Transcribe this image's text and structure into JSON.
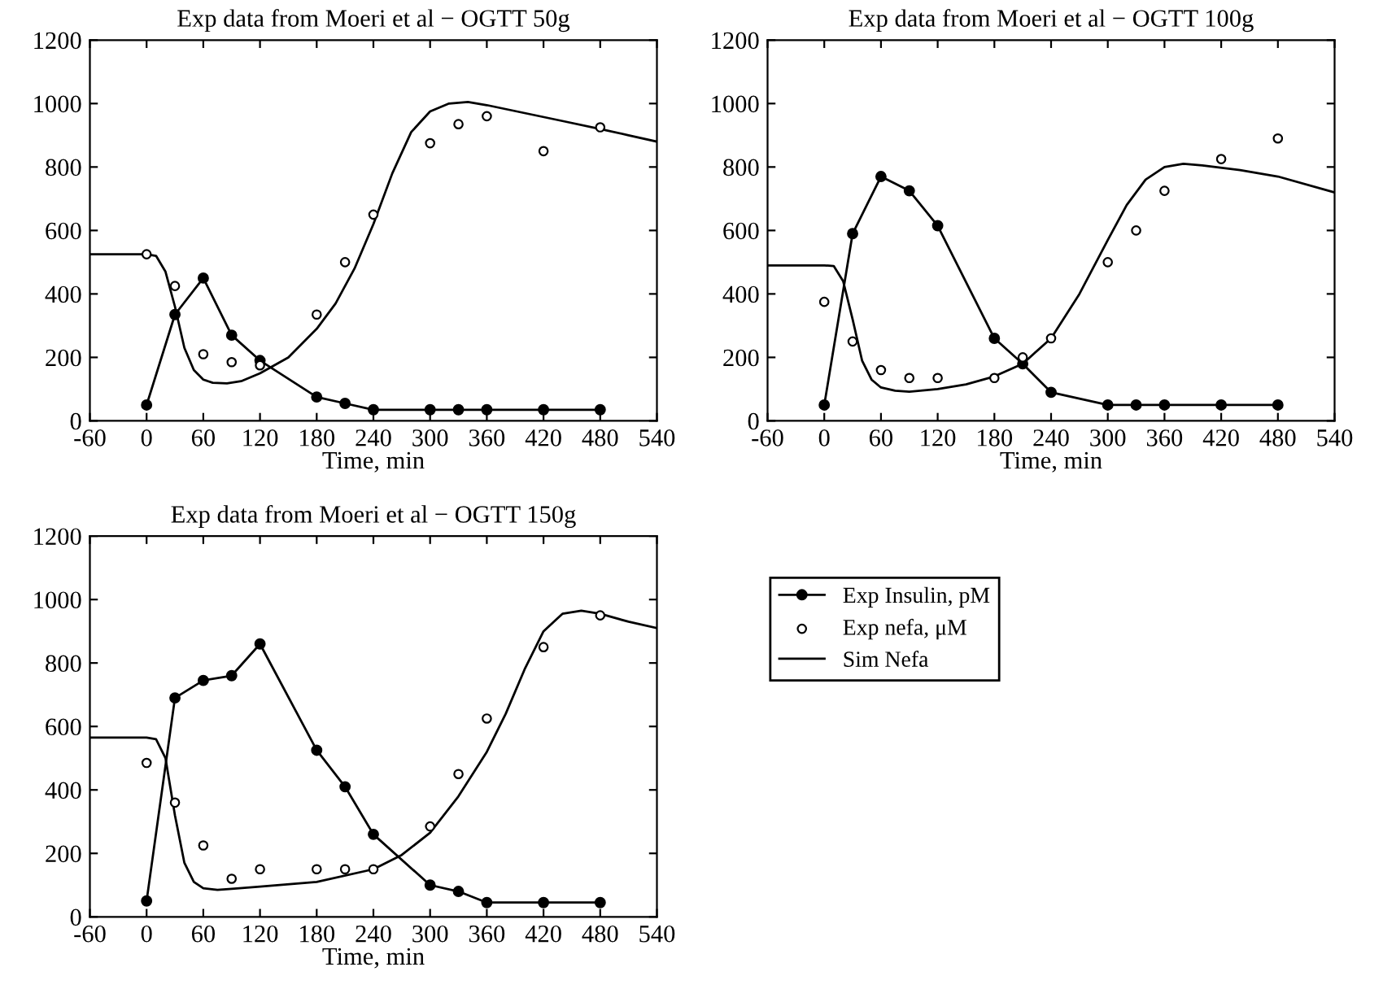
{
  "chart_data": [
    {
      "type": "line",
      "title": "Exp data from Moeri et al − OGTT 50g",
      "xlabel": "Time, min",
      "xlim": [
        -60,
        540
      ],
      "xticks": [
        -60,
        0,
        60,
        120,
        180,
        240,
        300,
        360,
        420,
        480,
        540
      ],
      "ylim": [
        0,
        1200
      ],
      "yticks": [
        0,
        200,
        400,
        600,
        800,
        1000,
        1200
      ],
      "grid": false,
      "legend": false,
      "series": [
        {
          "color": "#000000",
          "marker": "circle",
          "line_style": "solid",
          "x": [
            0,
            30,
            60,
            90,
            120,
            180,
            210,
            240,
            300,
            330,
            360,
            420,
            480
          ],
          "values": [
            50,
            335,
            450,
            270,
            190,
            75,
            55,
            35,
            35,
            35,
            35,
            35,
            35
          ]
        },
        {
          "type": "scatter",
          "color": "#000000",
          "marker": "circle",
          "x": [
            0,
            30,
            60,
            90,
            120,
            180,
            210,
            240,
            300,
            330,
            360,
            420,
            480
          ],
          "values": [
            525,
            425,
            210,
            185,
            175,
            335,
            500,
            650,
            875,
            935,
            960,
            850,
            925
          ]
        },
        {
          "color": "#000000",
          "marker": "none",
          "line_style": "solid",
          "x": [
            -60,
            0,
            10,
            20,
            30,
            40,
            50,
            60,
            70,
            85,
            100,
            120,
            150,
            180,
            200,
            220,
            240,
            260,
            280,
            300,
            320,
            340,
            360,
            400,
            440,
            480,
            510,
            540
          ],
          "values": [
            525,
            525,
            520,
            470,
            360,
            230,
            160,
            130,
            120,
            118,
            125,
            150,
            200,
            290,
            370,
            480,
            620,
            780,
            910,
            975,
            1000,
            1005,
            995,
            970,
            945,
            920,
            900,
            880
          ]
        }
      ]
    },
    {
      "type": "line",
      "title": "Exp data from Moeri et al − OGTT 100g",
      "xlabel": "Time, min",
      "xlim": [
        -60,
        540
      ],
      "xticks": [
        -60,
        0,
        60,
        120,
        180,
        240,
        300,
        360,
        420,
        480,
        540
      ],
      "ylim": [
        0,
        1200
      ],
      "yticks": [
        0,
        200,
        400,
        600,
        800,
        1000,
        1200
      ],
      "grid": false,
      "legend": false,
      "series": [
        {
          "color": "#000000",
          "marker": "circle",
          "line_style": "solid",
          "x": [
            0,
            30,
            60,
            90,
            120,
            180,
            210,
            240,
            300,
            330,
            360,
            420,
            480
          ],
          "values": [
            50,
            590,
            770,
            725,
            615,
            260,
            180,
            90,
            50,
            50,
            50,
            50,
            50
          ]
        },
        {
          "type": "scatter",
          "color": "#000000",
          "marker": "circle",
          "x": [
            0,
            30,
            60,
            90,
            120,
            180,
            210,
            240,
            300,
            330,
            360,
            420,
            480
          ],
          "values": [
            375,
            250,
            160,
            135,
            135,
            135,
            200,
            260,
            500,
            600,
            725,
            825,
            890
          ]
        },
        {
          "color": "#000000",
          "marker": "none",
          "line_style": "solid",
          "x": [
            -60,
            0,
            10,
            20,
            30,
            40,
            50,
            60,
            75,
            90,
            120,
            150,
            180,
            210,
            240,
            270,
            300,
            320,
            340,
            360,
            380,
            400,
            440,
            480,
            540
          ],
          "values": [
            490,
            490,
            488,
            440,
            320,
            190,
            130,
            105,
            95,
            92,
            100,
            115,
            140,
            180,
            260,
            400,
            570,
            680,
            760,
            800,
            810,
            805,
            790,
            770,
            720
          ]
        }
      ]
    },
    {
      "type": "line",
      "title": "Exp data from Moeri et al − OGTT 150g",
      "xlabel": "Time, min",
      "xlim": [
        -60,
        540
      ],
      "xticks": [
        -60,
        0,
        60,
        120,
        180,
        240,
        300,
        360,
        420,
        480,
        540
      ],
      "ylim": [
        0,
        1200
      ],
      "yticks": [
        0,
        200,
        400,
        600,
        800,
        1000,
        1200
      ],
      "grid": false,
      "legend": "right",
      "series": [
        {
          "name": "Exp Insulin, pM",
          "color": "#000000",
          "marker": "circle",
          "line_style": "solid",
          "x": [
            0,
            30,
            60,
            90,
            120,
            180,
            210,
            240,
            300,
            330,
            360,
            420,
            480
          ],
          "values": [
            50,
            690,
            745,
            760,
            860,
            525,
            410,
            260,
            100,
            80,
            45,
            45,
            45
          ]
        },
        {
          "name": "Exp nefa, μM",
          "type": "scatter",
          "color": "#000000",
          "marker": "circle",
          "x": [
            0,
            30,
            60,
            90,
            120,
            180,
            210,
            240,
            300,
            330,
            360,
            420,
            480
          ],
          "values": [
            485,
            360,
            225,
            120,
            150,
            150,
            150,
            150,
            285,
            450,
            625,
            850,
            950
          ]
        },
        {
          "name": "Sim Nefa",
          "color": "#000000",
          "marker": "none",
          "line_style": "solid",
          "x": [
            -60,
            0,
            10,
            20,
            30,
            40,
            50,
            60,
            75,
            90,
            120,
            180,
            240,
            270,
            300,
            330,
            360,
            380,
            400,
            420,
            440,
            460,
            480,
            510,
            540
          ],
          "values": [
            565,
            565,
            560,
            500,
            320,
            170,
            110,
            90,
            85,
            88,
            95,
            110,
            150,
            195,
            265,
            380,
            520,
            640,
            780,
            900,
            955,
            965,
            955,
            930,
            910
          ]
        }
      ]
    }
  ]
}
